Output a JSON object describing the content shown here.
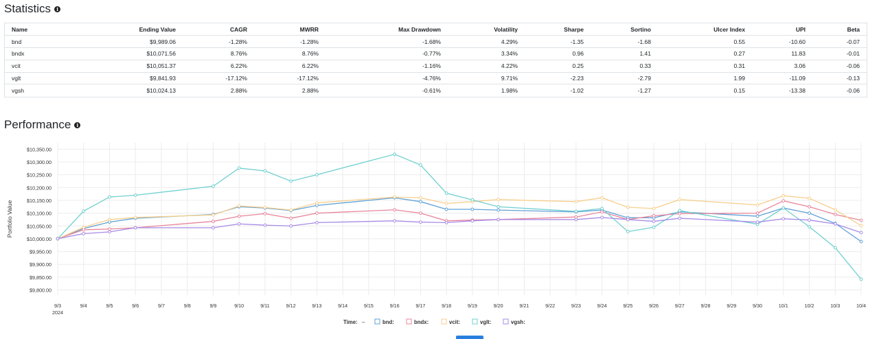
{
  "statistics": {
    "title": "Statistics",
    "columns": [
      "Name",
      "Ending Value",
      "CAGR",
      "MWRR",
      "Max Drawdown",
      "Volatility",
      "Sharpe",
      "Sortino",
      "Ulcer Index",
      "UPI",
      "Beta"
    ],
    "rows": [
      [
        "bnd",
        "$9,989.06",
        "-1.28%",
        "-1.28%",
        "-1.68%",
        "4.29%",
        "-1.35",
        "-1.68",
        "0.55",
        "-10.60",
        "-0.07"
      ],
      [
        "bndx",
        "$10,071.56",
        "8.76%",
        "8.76%",
        "-0.77%",
        "3.34%",
        "0.96",
        "1.41",
        "0.27",
        "11.83",
        "-0.01"
      ],
      [
        "vcit",
        "$10,051.37",
        "6.22%",
        "6.22%",
        "-1.16%",
        "4.22%",
        "0.25",
        "0.33",
        "0.31",
        "3.06",
        "-0.06"
      ],
      [
        "vglt",
        "$9,841.93",
        "-17.12%",
        "-17.12%",
        "-4.76%",
        "9.71%",
        "-2.23",
        "-2.79",
        "1.99",
        "-11.09",
        "-0.13"
      ],
      [
        "vgsh",
        "$10,024.13",
        "2.88%",
        "2.88%",
        "-0.61%",
        "1.98%",
        "-1.02",
        "-1.27",
        "0.15",
        "-13.38",
        "-0.06"
      ]
    ]
  },
  "performance": {
    "title": "Performance"
  },
  "chart_data": {
    "type": "line",
    "title": "",
    "xlabel": "",
    "ylabel": "Portfolio Value",
    "ylim": [
      9780,
      10375
    ],
    "yticks": [
      9800,
      9850,
      9900,
      9950,
      10000,
      10050,
      10100,
      10150,
      10200,
      10250,
      10300,
      10350
    ],
    "ytick_labels": [
      "$9,800.00",
      "$9,850.00",
      "$9,900.00",
      "$9,950.00",
      "$10,000.00",
      "$10,050.00",
      "$10,100.00",
      "$10,150.00",
      "$10,200.00",
      "$10,250.00",
      "$10,300.00",
      "$10,350.00"
    ],
    "categories": [
      "9/3",
      "9/4",
      "9/5",
      "9/6",
      "9/7",
      "9/8",
      "9/9",
      "9/10",
      "9/11",
      "9/12",
      "9/13",
      "9/14",
      "9/15",
      "9/16",
      "9/17",
      "9/18",
      "9/19",
      "9/20",
      "9/21",
      "9/22",
      "9/23",
      "9/24",
      "9/25",
      "9/26",
      "9/27",
      "9/28",
      "9/29",
      "9/30",
      "10/1",
      "10/2",
      "10/3",
      "10/4"
    ],
    "x_sublabel": "2024",
    "legend_prefix": "Time:",
    "legend_prefix_value": "–",
    "series": [
      {
        "name": "bnd",
        "legend": "bnd:",
        "color": "#5fa0d6",
        "values": [
          10000,
          10040,
          10065,
          10080,
          null,
          null,
          10095,
          10125,
          10120,
          10110,
          10130,
          null,
          null,
          10160,
          10145,
          10115,
          10115,
          10112,
          null,
          null,
          10105,
          10112,
          10082,
          10082,
          10105,
          null,
          null,
          10088,
          10120,
          10100,
          10060,
          9989
        ]
      },
      {
        "name": "bndx",
        "legend": "bndx:",
        "color": "#e8849a",
        "values": [
          10000,
          10035,
          10038,
          10043,
          null,
          null,
          10068,
          10088,
          10098,
          10080,
          10100,
          null,
          null,
          10113,
          10100,
          10070,
          10073,
          10075,
          null,
          null,
          10085,
          10105,
          10075,
          10090,
          10098,
          null,
          null,
          10100,
          10148,
          10125,
          10095,
          10072
        ]
      },
      {
        "name": "vcit",
        "legend": "vcit:",
        "color": "#f7cf8c",
        "values": [
          10000,
          10045,
          10075,
          10083,
          null,
          null,
          10093,
          10128,
          10122,
          10112,
          10140,
          null,
          null,
          10163,
          10160,
          10138,
          10145,
          10153,
          null,
          null,
          10145,
          10160,
          10123,
          10118,
          10153,
          null,
          null,
          10132,
          10168,
          10158,
          10113,
          10051
        ]
      },
      {
        "name": "vglt",
        "legend": "vglt:",
        "color": "#6fcfcf",
        "values": [
          10000,
          10108,
          10163,
          10170,
          null,
          null,
          10205,
          10276,
          10265,
          10225,
          10250,
          null,
          null,
          10330,
          10288,
          10178,
          10152,
          10125,
          null,
          null,
          10107,
          10118,
          10028,
          10045,
          10110,
          null,
          null,
          10057,
          10120,
          10047,
          9965,
          9842
        ]
      },
      {
        "name": "vgsh",
        "legend": "vgsh:",
        "color": "#a68ae6",
        "values": [
          10000,
          10020,
          10027,
          10043,
          null,
          null,
          10043,
          10058,
          10053,
          10050,
          10063,
          null,
          null,
          10070,
          10065,
          10063,
          10070,
          10075,
          null,
          null,
          10075,
          10083,
          10075,
          10068,
          10080,
          null,
          null,
          10065,
          10078,
          10073,
          10058,
          10024
        ]
      }
    ]
  }
}
